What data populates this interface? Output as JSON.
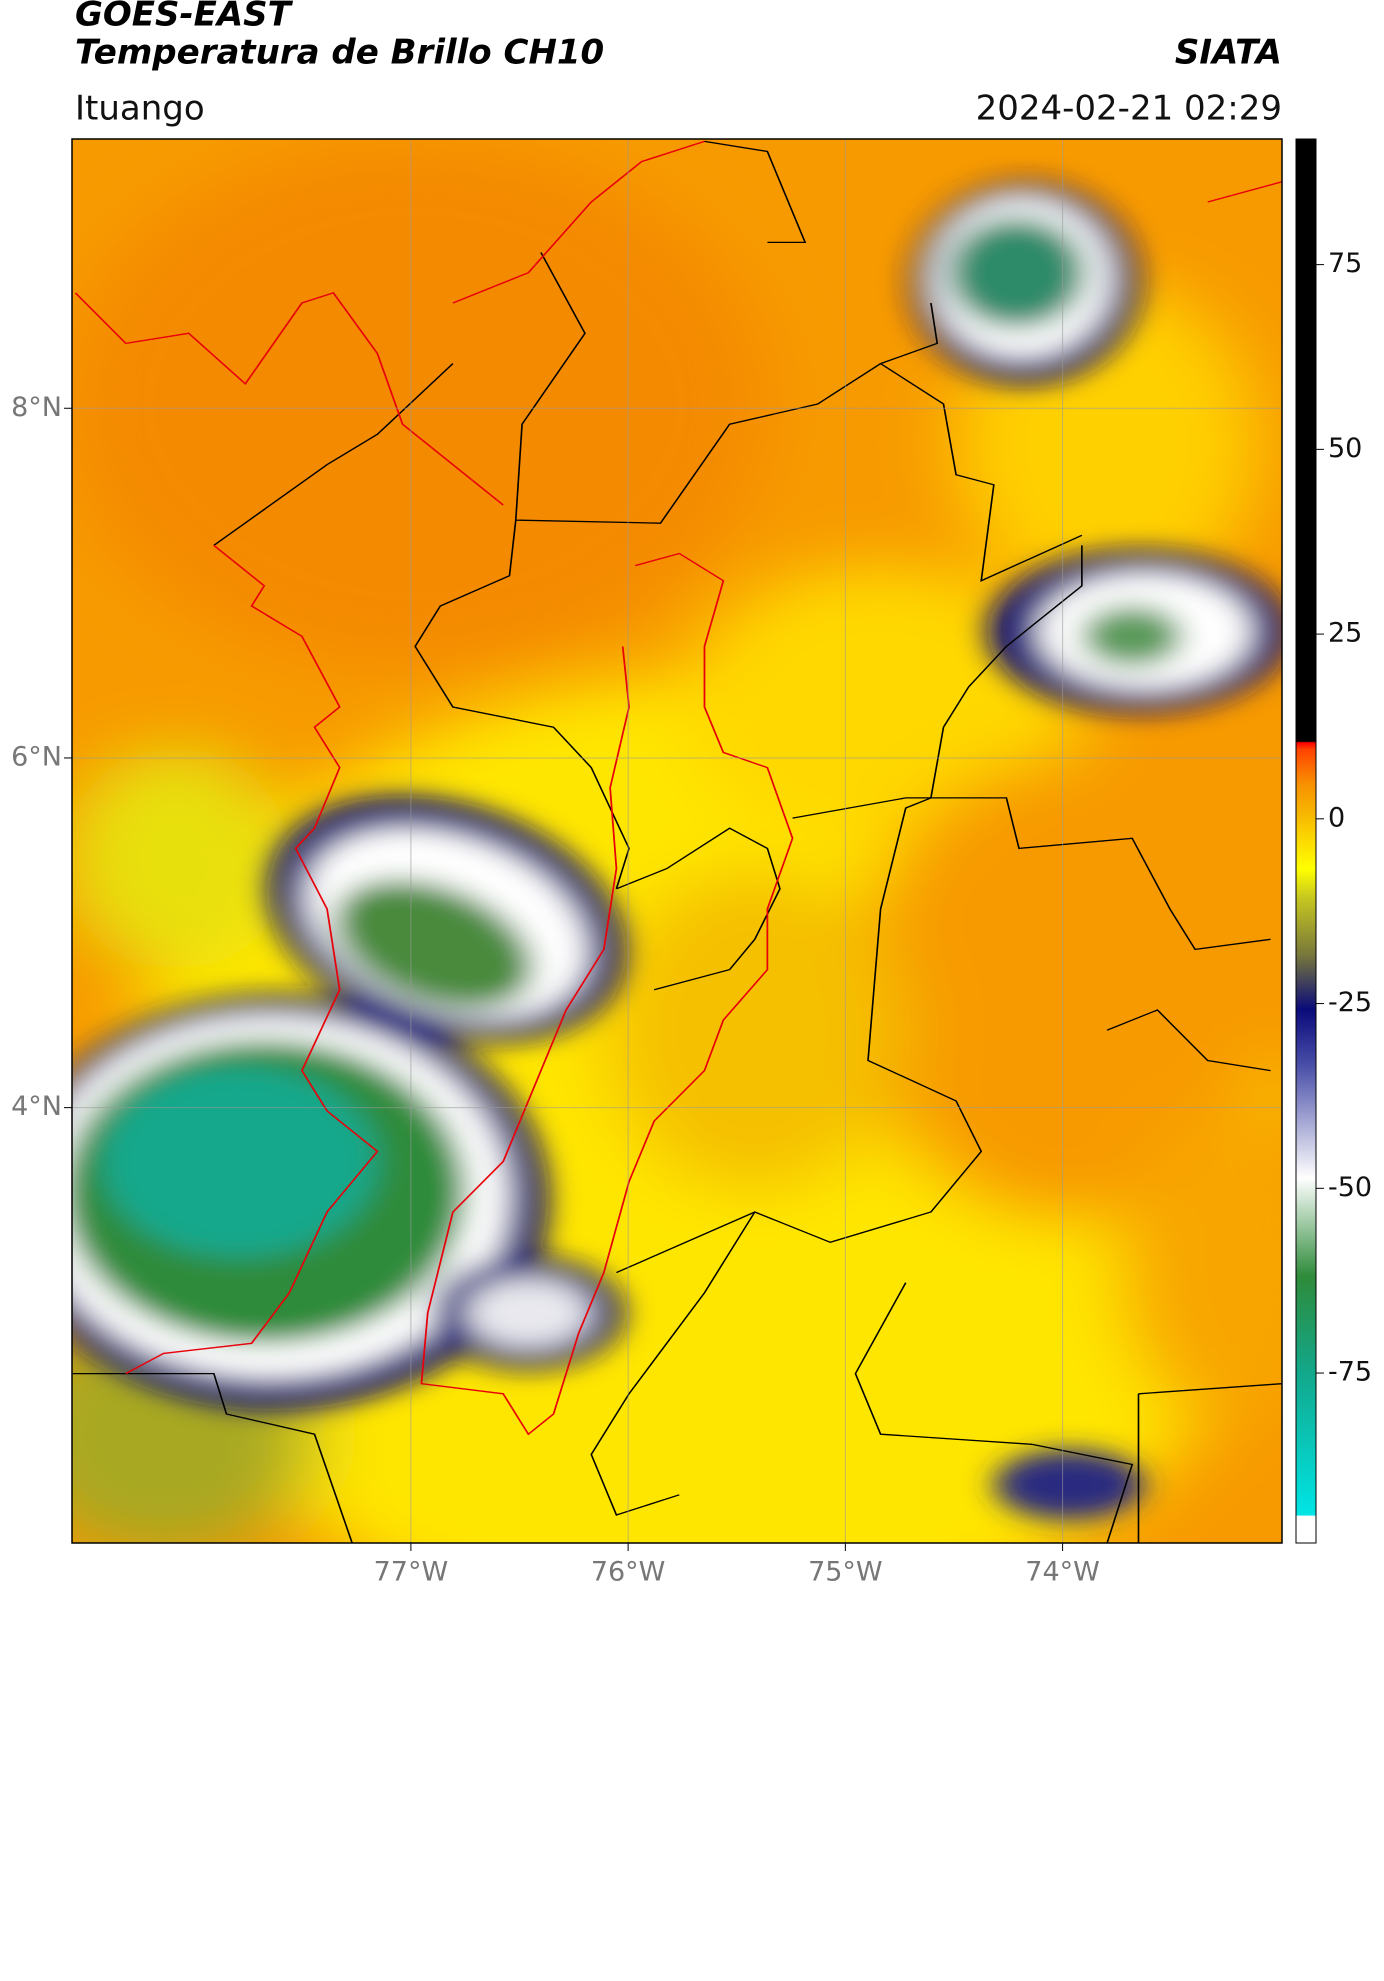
{
  "header": {
    "title": "GOES-EAST",
    "subtitle": "Temperatura de Brillo CH10",
    "source": "SIATA",
    "location": "Ituango",
    "datetime": "2024-02-21 02:29"
  },
  "map": {
    "latlim": [
      1.51,
      9.54
    ],
    "lonlim": [
      -78.56,
      -72.99
    ],
    "lat_ticks": [
      {
        "value": 8,
        "label": "8°N"
      },
      {
        "value": 6,
        "label": "6°N"
      },
      {
        "value": 4,
        "label": "4°N"
      }
    ],
    "lon_ticks": [
      {
        "value": -77,
        "label": "77°W"
      },
      {
        "value": -76,
        "label": "76°W"
      },
      {
        "value": -75,
        "label": "75°W"
      },
      {
        "value": -74,
        "label": "74°W"
      }
    ],
    "grid": true
  },
  "colorbar": {
    "lim": [
      -98,
      92
    ],
    "ticks": [
      75,
      50,
      25,
      0,
      -25,
      -50,
      -75
    ]
  }
}
